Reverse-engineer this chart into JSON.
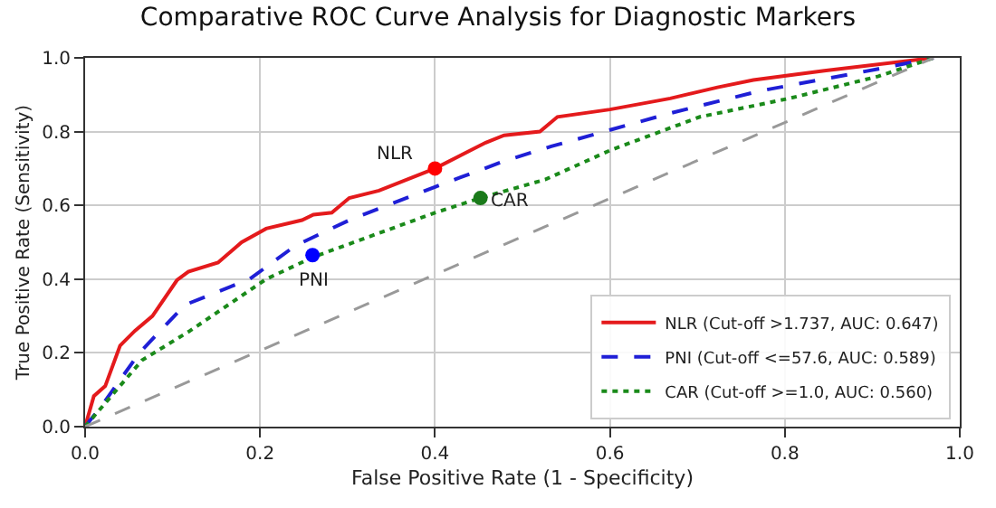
{
  "chart_data": {
    "type": "line",
    "title": "Comparative ROC Curve Analysis for Diagnostic Markers",
    "xlabel": "False Positive Rate (1 - Specificity)",
    "ylabel": "True Positive Rate (Sensitivity)",
    "xlim": [
      0,
      1.0
    ],
    "ylim": [
      0,
      1.0
    ],
    "xticks": [
      {
        "value": 0,
        "label": "0.0"
      },
      0.2,
      0.4,
      0.6,
      0.8,
      {
        "value": 1,
        "label": "1.0"
      }
    ],
    "yticks": [
      {
        "value": 0,
        "label": "0.0"
      },
      0.2,
      0.4,
      0.6,
      0.8,
      {
        "value": 1,
        "label": "1.0"
      }
    ],
    "grid": true,
    "legend": "bottom right",
    "series": [
      {
        "name": "NLR (Cut-off >1.737, AUC: 0.647)",
        "color": "#e41a1c",
        "line_style": "solid",
        "x": [
          0,
          0.01,
          0.023,
          0.04,
          0.057,
          0.077,
          0.105,
          0.118,
          0.152,
          0.179,
          0.207,
          0.248,
          0.261,
          0.282,
          0.302,
          0.336,
          0.4,
          0.458,
          0.479,
          0.52,
          0.54,
          0.6,
          0.669,
          0.723,
          0.764,
          0.845,
          0.97
        ],
        "values": [
          0,
          0.083,
          0.11,
          0.22,
          0.26,
          0.3,
          0.397,
          0.42,
          0.445,
          0.5,
          0.537,
          0.56,
          0.575,
          0.58,
          0.62,
          0.64,
          0.7,
          0.77,
          0.79,
          0.8,
          0.84,
          0.86,
          0.89,
          0.92,
          0.94,
          0.965,
          1.0
        ]
      },
      {
        "name": "PNI (Cut-off <=57.6, AUC: 0.589)",
        "color": "#1f1fd6",
        "line_style": "dashed",
        "x": [
          0,
          0.02,
          0.062,
          0.114,
          0.188,
          0.24,
          0.302,
          0.4,
          0.479,
          0.533,
          0.669,
          0.771,
          0.907,
          0.97
        ],
        "values": [
          0,
          0.06,
          0.2,
          0.33,
          0.4,
          0.49,
          0.56,
          0.65,
          0.72,
          0.76,
          0.85,
          0.91,
          0.97,
          1.0
        ]
      },
      {
        "name": "CAR (Cut-off >=1.0, AUC: 0.560)",
        "color": "#1a8a1a",
        "line_style": "dotted",
        "x": [
          0,
          0.065,
          0.12,
          0.207,
          0.261,
          0.4,
          0.452,
          0.526,
          0.601,
          0.703,
          0.805,
          0.907,
          0.97
        ],
        "values": [
          0,
          0.18,
          0.26,
          0.4,
          0.46,
          0.58,
          0.62,
          0.67,
          0.75,
          0.84,
          0.89,
          0.95,
          1.0
        ]
      },
      {
        "color": "#999999",
        "line_style": "dashed",
        "x": [
          0,
          0.97
        ],
        "values": [
          0,
          1.0
        ]
      },
      {
        "type": "scatter",
        "color": "#ff0000",
        "marker": "circle",
        "x": [
          0.4
        ],
        "values": [
          0.7
        ]
      },
      {
        "type": "scatter",
        "color": "#0000ff",
        "marker": "circle",
        "x": [
          0.26
        ],
        "values": [
          0.465
        ]
      },
      {
        "type": "scatter",
        "color": "#1a7a1a",
        "marker": "circle",
        "x": [
          0.452
        ],
        "values": [
          0.62
        ]
      }
    ],
    "annotations": [
      {
        "text": "NLR",
        "x": 0.4,
        "y": 0.7
      },
      {
        "text": "PNI",
        "x": 0.26,
        "y": 0.465
      },
      {
        "text": "CAR",
        "x": 0.452,
        "y": 0.62
      }
    ]
  }
}
